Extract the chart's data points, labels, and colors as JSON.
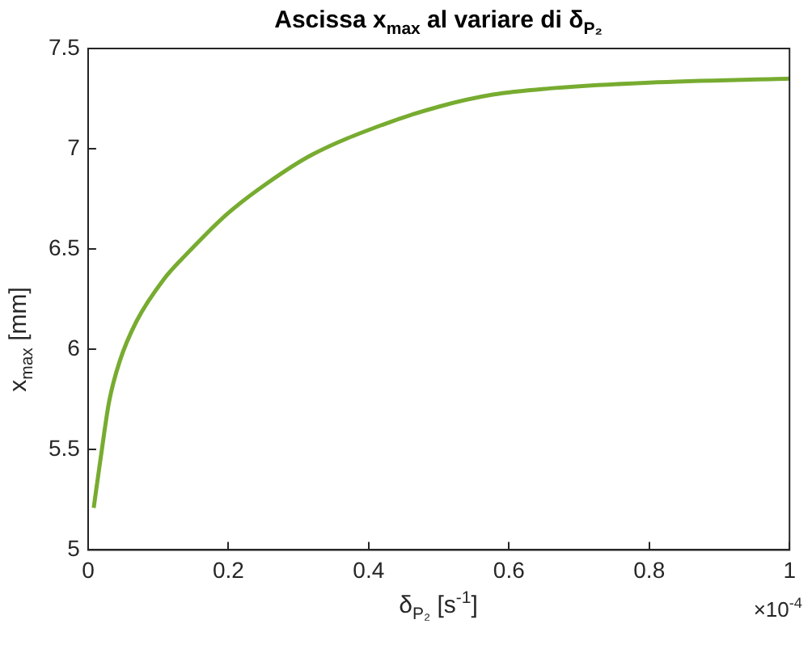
{
  "chart_data": {
    "type": "line",
    "title": "Ascissa x$_{max}$ al variare di δ$_{P₂}$",
    "xlabel": "δ$_{P₂}$ [s$^{-1}$]",
    "ylabel": "x$_{max}$ [mm]",
    "annotations": [
      "×10$^{-4}$"
    ],
    "x": [
      0.008,
      0.018,
      0.03,
      0.045,
      0.069,
      0.108,
      0.139,
      0.2,
      0.256,
      0.319,
      0.42,
      0.5,
      0.577,
      0.655,
      0.8,
      1
    ],
    "series": [
      {
        "color": "#77ac30",
        "values": [
          5.21,
          5.46,
          5.74,
          5.94,
          6.14,
          6.35,
          6.47,
          6.68,
          6.83,
          6.97,
          7.12,
          7.21,
          7.27,
          7.3,
          7.33,
          7.35
        ]
      }
    ],
    "xlim": [
      0,
      1
    ],
    "xticks": [
      0,
      0.2,
      0.4,
      0.6,
      0.8,
      1
    ],
    "ylim": [
      5,
      7.5
    ],
    "yticks": [
      5,
      5.5,
      6,
      6.5,
      7,
      7.5
    ],
    "grid": false,
    "legend": false,
    "marker": "none",
    "line_style": "solid"
  }
}
